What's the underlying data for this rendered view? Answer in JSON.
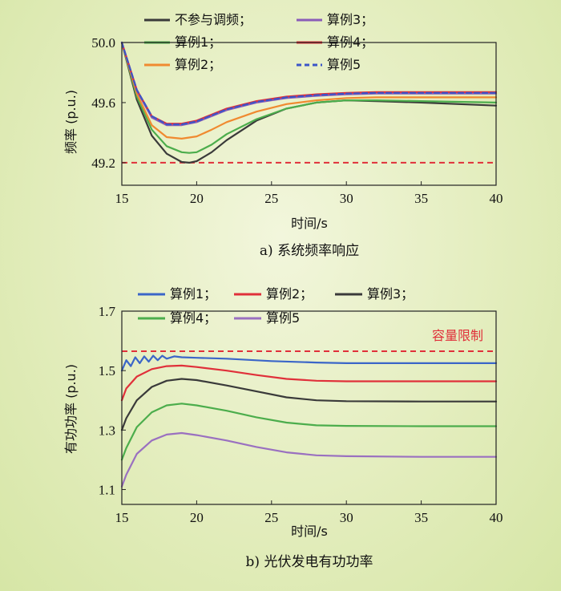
{
  "chart_data": [
    {
      "type": "line",
      "caption": "a) 系统频率响应",
      "xlabel": "时间/s",
      "ylabel": "频率 (p.u.)",
      "xlim": [
        15,
        40
      ],
      "ylim": [
        49.05,
        50.0
      ],
      "xticks": [
        "15",
        "20",
        "25",
        "30",
        "35",
        "40"
      ],
      "yticks": [
        "49.2",
        "49.6",
        "50.0"
      ],
      "legend": "top-left",
      "grid": false,
      "series": [
        {
          "name": "不参与调频；",
          "color": "#3a3a3a",
          "dashed": false,
          "x": [
            15,
            16,
            17,
            18,
            19,
            19.5,
            20,
            21,
            22,
            24,
            26,
            28,
            30,
            32,
            35,
            40
          ],
          "y": [
            50.0,
            49.62,
            49.38,
            49.26,
            49.205,
            49.2,
            49.21,
            49.27,
            49.35,
            49.48,
            49.56,
            49.6,
            49.615,
            49.61,
            49.6,
            49.58
          ]
        },
        {
          "name": "算例1；",
          "color": "#4cad4c",
          "dashed": false,
          "x": [
            15,
            16,
            17,
            18,
            19,
            19.5,
            20,
            21,
            22,
            24,
            26,
            28,
            30,
            32,
            35,
            40
          ],
          "y": [
            50.0,
            49.64,
            49.42,
            49.31,
            49.27,
            49.265,
            49.27,
            49.32,
            49.39,
            49.49,
            49.56,
            49.6,
            49.615,
            49.615,
            49.61,
            49.6
          ]
        },
        {
          "name": "算例2；",
          "color": "#f08a30",
          "dashed": false,
          "x": [
            15,
            16,
            17,
            18,
            19,
            20,
            21,
            22,
            24,
            26,
            28,
            30,
            32,
            35,
            40
          ],
          "y": [
            50.0,
            49.66,
            49.45,
            49.37,
            49.36,
            49.375,
            49.42,
            49.47,
            49.54,
            49.59,
            49.615,
            49.63,
            49.635,
            49.635,
            49.635
          ]
        },
        {
          "name": "算例3；",
          "color": "#8a5cb8",
          "dashed": false,
          "x": [
            15,
            16,
            17,
            18,
            19,
            20,
            21,
            22,
            24,
            26,
            28,
            30,
            32,
            35,
            40
          ],
          "y": [
            50.0,
            49.68,
            49.5,
            49.45,
            49.45,
            49.47,
            49.51,
            49.55,
            49.6,
            49.63,
            49.645,
            49.655,
            49.66,
            49.66,
            49.66
          ]
        },
        {
          "name": "算例4；",
          "color": "#e0303a",
          "dashed": false,
          "x": [
            15,
            16,
            17,
            18,
            19,
            20,
            21,
            22,
            24,
            26,
            28,
            30,
            32,
            35,
            40
          ],
          "y": [
            50.0,
            49.685,
            49.51,
            49.46,
            49.46,
            49.48,
            49.52,
            49.56,
            49.61,
            49.64,
            49.655,
            49.665,
            49.67,
            49.67,
            49.67
          ]
        },
        {
          "name": "算例5",
          "color": "#3b55c8",
          "dashed": true,
          "x": [
            15,
            16,
            17,
            18,
            19,
            20,
            21,
            22,
            24,
            26,
            28,
            30,
            32,
            35,
            40
          ],
          "y": [
            50.0,
            49.685,
            49.51,
            49.455,
            49.455,
            49.475,
            49.515,
            49.555,
            49.605,
            49.635,
            49.65,
            49.66,
            49.665,
            49.665,
            49.665
          ]
        }
      ],
      "reference_lines": [
        {
          "y": 49.2,
          "color": "#e0303a",
          "dashed": true
        }
      ]
    },
    {
      "type": "line",
      "caption": "b) 光伏发电有功功率",
      "xlabel": "时间/s",
      "ylabel": "有功功率 (p.u.)",
      "xlim": [
        15,
        40
      ],
      "ylim": [
        1.05,
        1.7
      ],
      "xticks": [
        "15",
        "20",
        "25",
        "30",
        "35",
        "40"
      ],
      "yticks": [
        "1.1",
        "1.3",
        "1.5",
        "1.7"
      ],
      "legend": "top",
      "grid": false,
      "series": [
        {
          "name": "算例1；",
          "color": "#3b66c8",
          "dashed": false,
          "oscillating": true,
          "x": [
            15,
            15.3,
            15.6,
            15.9,
            16.2,
            16.5,
            16.8,
            17.1,
            17.4,
            17.7,
            18,
            18.5,
            19,
            20,
            22,
            25,
            28,
            30,
            35,
            40
          ],
          "y": [
            1.5,
            1.535,
            1.515,
            1.545,
            1.525,
            1.548,
            1.53,
            1.55,
            1.535,
            1.55,
            1.54,
            1.548,
            1.545,
            1.543,
            1.54,
            1.532,
            1.527,
            1.525,
            1.525,
            1.525
          ]
        },
        {
          "name": "算例2；",
          "color": "#e0303a",
          "dashed": false,
          "x": [
            15,
            15.3,
            16,
            17,
            18,
            19,
            20,
            22,
            24,
            26,
            28,
            30,
            35,
            40
          ],
          "y": [
            1.4,
            1.44,
            1.48,
            1.505,
            1.515,
            1.517,
            1.512,
            1.5,
            1.485,
            1.472,
            1.466,
            1.464,
            1.464,
            1.464
          ]
        },
        {
          "name": "算例3；",
          "color": "#3a3a3a",
          "dashed": false,
          "x": [
            15,
            15.3,
            16,
            17,
            18,
            19,
            20,
            22,
            24,
            26,
            28,
            30,
            35,
            40
          ],
          "y": [
            1.3,
            1.34,
            1.4,
            1.445,
            1.466,
            1.472,
            1.468,
            1.45,
            1.43,
            1.41,
            1.4,
            1.397,
            1.396,
            1.396
          ]
        },
        {
          "name": "算例4；",
          "color": "#4cad4c",
          "dashed": false,
          "x": [
            15,
            15.3,
            16,
            17,
            18,
            19,
            20,
            22,
            24,
            26,
            28,
            30,
            35,
            40
          ],
          "y": [
            1.2,
            1.24,
            1.31,
            1.36,
            1.383,
            1.389,
            1.383,
            1.365,
            1.343,
            1.325,
            1.316,
            1.314,
            1.313,
            1.313
          ]
        },
        {
          "name": "算例5",
          "color": "#9a70c0",
          "dashed": false,
          "x": [
            15,
            15.3,
            16,
            17,
            18,
            19,
            20,
            22,
            24,
            26,
            28,
            30,
            35,
            40
          ],
          "y": [
            1.11,
            1.15,
            1.22,
            1.265,
            1.285,
            1.29,
            1.283,
            1.265,
            1.243,
            1.225,
            1.215,
            1.212,
            1.21,
            1.21
          ]
        }
      ],
      "reference_lines": [
        {
          "y": 1.565,
          "color": "#e0303a",
          "dashed": true,
          "label": "容量限制"
        }
      ]
    }
  ]
}
